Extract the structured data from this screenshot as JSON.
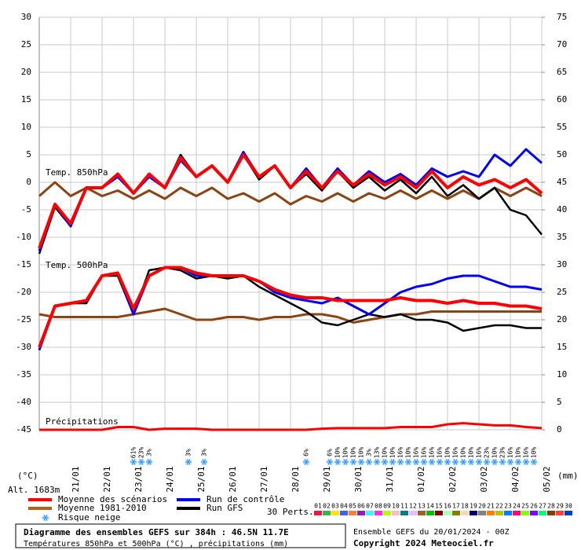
{
  "chart_data": {
    "type": "line",
    "labels": {
      "t850": "Temp. 850hPa",
      "t500": "Temp. 500hPa",
      "precip": "Précipitations",
      "yunit": "(°C)",
      "y2unit": "(mm)",
      "alt": "Alt. 1683m"
    },
    "xlim": [
      0,
      384
    ],
    "xticks": [
      {
        "value": 24,
        "label": "21/01"
      },
      {
        "value": 48,
        "label": "22/01"
      },
      {
        "value": 72,
        "label": "23/01"
      },
      {
        "value": 96,
        "label": "24/01"
      },
      {
        "value": 120,
        "label": "25/01"
      },
      {
        "value": 144,
        "label": "26/01"
      },
      {
        "value": 168,
        "label": "27/01"
      },
      {
        "value": 192,
        "label": "28/01"
      },
      {
        "value": 216,
        "label": "29/01"
      },
      {
        "value": 240,
        "label": "30/01"
      },
      {
        "value": 264,
        "label": "31/01"
      },
      {
        "value": 288,
        "label": "01/02"
      },
      {
        "value": 312,
        "label": "02/02"
      },
      {
        "value": 336,
        "label": "03/02"
      },
      {
        "value": 360,
        "label": "04/02"
      },
      {
        "value": 384,
        "label": "05/02"
      }
    ],
    "ylim": [
      -45,
      30
    ],
    "yticks": [
      -45,
      -40,
      -35,
      -30,
      -25,
      -20,
      -15,
      -10,
      -5,
      0,
      5,
      10,
      15,
      20,
      25,
      30
    ],
    "y2lim": [
      0,
      75
    ],
    "y2ticks": [
      0,
      5,
      10,
      15,
      20,
      25,
      30,
      35,
      40,
      45,
      50,
      55,
      60,
      65,
      70,
      75
    ],
    "grid": true,
    "x": [
      0,
      12,
      24,
      36,
      48,
      60,
      72,
      84,
      96,
      108,
      120,
      132,
      144,
      156,
      168,
      180,
      192,
      204,
      216,
      228,
      240,
      252,
      264,
      276,
      288,
      300,
      312,
      324,
      336,
      348,
      360,
      372,
      384
    ],
    "series": [
      {
        "color": "#8b4513",
        "width": 3,
        "values": [
          -2.5,
          0,
          -2.5,
          -1,
          -2.5,
          -1.5,
          -3,
          -1.5,
          -3,
          -1,
          -2.5,
          -1,
          -3,
          -2,
          -3.5,
          -2,
          -4,
          -2.5,
          -3.5,
          -2,
          -3.5,
          -2,
          -3,
          -1.5,
          -3,
          -1.5,
          -3,
          -1.5,
          -3,
          -1,
          -2.5,
          -1,
          -2.5
        ]
      },
      {
        "color": "#8b4513",
        "width": 3,
        "values": [
          -24,
          -24.5,
          -24.5,
          -24.5,
          -24.5,
          -24.5,
          -24,
          -23.5,
          -23,
          -24,
          -25,
          -25,
          -24.5,
          -24.5,
          -25,
          -24.5,
          -24.5,
          -24,
          -24,
          -24.5,
          -25.5,
          -25,
          -24.5,
          -24,
          -24,
          -23.5,
          -23.5,
          -23.5,
          -23.5,
          -23.5,
          -23.5,
          -23.5,
          -23.5
        ]
      },
      {
        "color": "#000000",
        "width": 2.5,
        "values": [
          -13,
          -4.5,
          -8,
          -1,
          -1,
          1.5,
          -2,
          1,
          -1,
          5,
          1,
          3,
          0,
          5,
          0.5,
          3,
          -1,
          1.5,
          -1.5,
          2,
          -1,
          1,
          -1.5,
          0.5,
          -2,
          1,
          -2.5,
          -0.5,
          -3,
          -1,
          -5,
          -6,
          -9.5
        ]
      },
      {
        "color": "#000000",
        "width": 2.5,
        "values": [
          -30.5,
          -22.5,
          -22,
          -22,
          -17,
          -17,
          -24,
          -16,
          -15.5,
          -16,
          -17.5,
          -17,
          -17.5,
          -17,
          -19,
          -20.5,
          -22,
          -23.5,
          -25.5,
          -26,
          -25,
          -24,
          -24.5,
          -24,
          -25,
          -25,
          -25.5,
          -27,
          -26.5,
          -26,
          -26,
          -26.5,
          -26.5
        ]
      },
      {
        "color": "#0000ff",
        "width": 3,
        "values": [
          -12.5,
          -4,
          -8,
          -1,
          -1,
          1,
          -2,
          1,
          -1,
          4,
          1,
          3,
          0,
          5.5,
          1,
          3,
          -1,
          2.5,
          -1,
          2.5,
          -0.5,
          2,
          0,
          1.5,
          -0.5,
          2.5,
          1,
          2,
          1,
          5,
          3,
          6,
          3.5
        ]
      },
      {
        "color": "#0000ff",
        "width": 3,
        "values": [
          -30.5,
          -22.5,
          -22,
          -21.5,
          -17,
          -16.5,
          -24,
          -17,
          -15.5,
          -15.5,
          -17,
          -17,
          -17,
          -17,
          -18,
          -20,
          -21,
          -21.5,
          -22,
          -21,
          -22.5,
          -24,
          -22,
          -20,
          -19,
          -18.5,
          -17.5,
          -17,
          -17,
          -18,
          -19,
          -19,
          -19.5
        ]
      },
      {
        "color": "#ff0000",
        "width": 4,
        "values": [
          -12,
          -4,
          -7.5,
          -1,
          -1,
          1.5,
          -2,
          1.5,
          -1,
          4.5,
          1,
          3,
          0,
          5,
          1,
          3,
          -1,
          2,
          -1,
          2,
          -0.5,
          1.5,
          -0.5,
          1,
          -1,
          2,
          -1,
          1,
          -0.5,
          0.5,
          -1,
          0.5,
          -2
        ]
      },
      {
        "color": "#ff0000",
        "width": 4,
        "values": [
          -30,
          -22.5,
          -22,
          -21.5,
          -17,
          -16.5,
          -23,
          -17,
          -15.5,
          -15.5,
          -16.5,
          -17,
          -17,
          -17,
          -18,
          -19.5,
          -20.5,
          -21,
          -21,
          -21.5,
          -21.5,
          -21.5,
          -21.5,
          -21,
          -21.5,
          -21.5,
          -22,
          -21.5,
          -22,
          -22,
          -22.5,
          -22.5,
          -23
        ]
      },
      {
        "color": "#ff0000",
        "width": 3,
        "axis": "y2",
        "values": [
          0,
          0,
          0,
          0,
          0,
          0.5,
          0.5,
          0,
          0.2,
          0.2,
          0.2,
          0,
          0,
          0,
          0,
          0,
          0,
          0,
          0.2,
          0.3,
          0.3,
          0.3,
          0.3,
          0.5,
          0.5,
          0.5,
          1,
          1.2,
          1,
          0.8,
          0.8,
          0.5,
          0.3
        ]
      }
    ],
    "snow_risk": {
      "x": [
        72,
        78,
        84,
        114,
        126,
        204,
        222,
        228,
        234,
        240,
        246,
        252,
        258,
        264,
        270,
        276,
        282,
        288,
        294,
        300,
        306,
        312,
        318,
        324,
        330,
        336,
        342,
        348,
        354,
        360,
        366,
        372,
        378
      ],
      "values": [
        61,
        23,
        3,
        3,
        3,
        6,
        6,
        10,
        10,
        10,
        10,
        3,
        13,
        10,
        10,
        16,
        10,
        16,
        16,
        16,
        16,
        10,
        16,
        10,
        10,
        16,
        23,
        10,
        23,
        16,
        10,
        16,
        10
      ],
      "value_labels": [
        "61%",
        "23%",
        "3%",
        "3%",
        "3%",
        "6%",
        "6%",
        "10%",
        "10%",
        "10%",
        "10%",
        "3%",
        "13%",
        "10%",
        "10%",
        "16%",
        "10%",
        "16%",
        "16%",
        "16%",
        "16%",
        "10%",
        "16%",
        "10%",
        "10%",
        "16%",
        "23%",
        "10%",
        "23%",
        "16%",
        "10%",
        "16%",
        "10%"
      ]
    },
    "legend": [
      {
        "name": "Moyenne des scénarios",
        "color": "#ff0000"
      },
      {
        "name": "Moyenne 1981-2010",
        "color": "#b8601a"
      },
      {
        "name": "Risque neige",
        "color": "#66aaff"
      },
      {
        "name": "Run de contrôle",
        "color": "#0000ff"
      },
      {
        "name": "Run GFS",
        "color": "#000000"
      }
    ],
    "perts": {
      "label": "30 Perts.",
      "names": [
        "01",
        "02",
        "03",
        "04",
        "05",
        "06",
        "07",
        "08",
        "09",
        "10",
        "11",
        "12",
        "13",
        "14",
        "15",
        "16",
        "17",
        "18",
        "19",
        "20",
        "21",
        "22",
        "23",
        "24",
        "25",
        "26",
        "27",
        "28",
        "29",
        "30"
      ],
      "colors": [
        "#e6194b",
        "#3cb44b",
        "#ffe119",
        "#4363d8",
        "#f58231",
        "#911eb4",
        "#46f0f0",
        "#f032e6",
        "#bcf60c",
        "#fabebe",
        "#008080",
        "#e6beff",
        "#9a6324",
        "#00c000",
        "#800000",
        "#aaffc3",
        "#808000",
        "#ffd8b1",
        "#000075",
        "#808080",
        "#ff8000",
        "#c0c000",
        "#0080ff",
        "#ff0080",
        "#80ff00",
        "#8000ff",
        "#00ff80",
        "#804000",
        "#ff4040",
        "#0040c0"
      ]
    },
    "footer": {
      "title": "Diagramme des ensembles GEFS sur 384h : 46.5N 11.7E",
      "subtitle": "Températures 850hPa et 500hPa (°C) , précipitations (mm)",
      "run": "Ensemble GEFS du 20/01/2024 - 00Z",
      "copyright": "Copyright 2024 Meteociel.fr"
    }
  }
}
